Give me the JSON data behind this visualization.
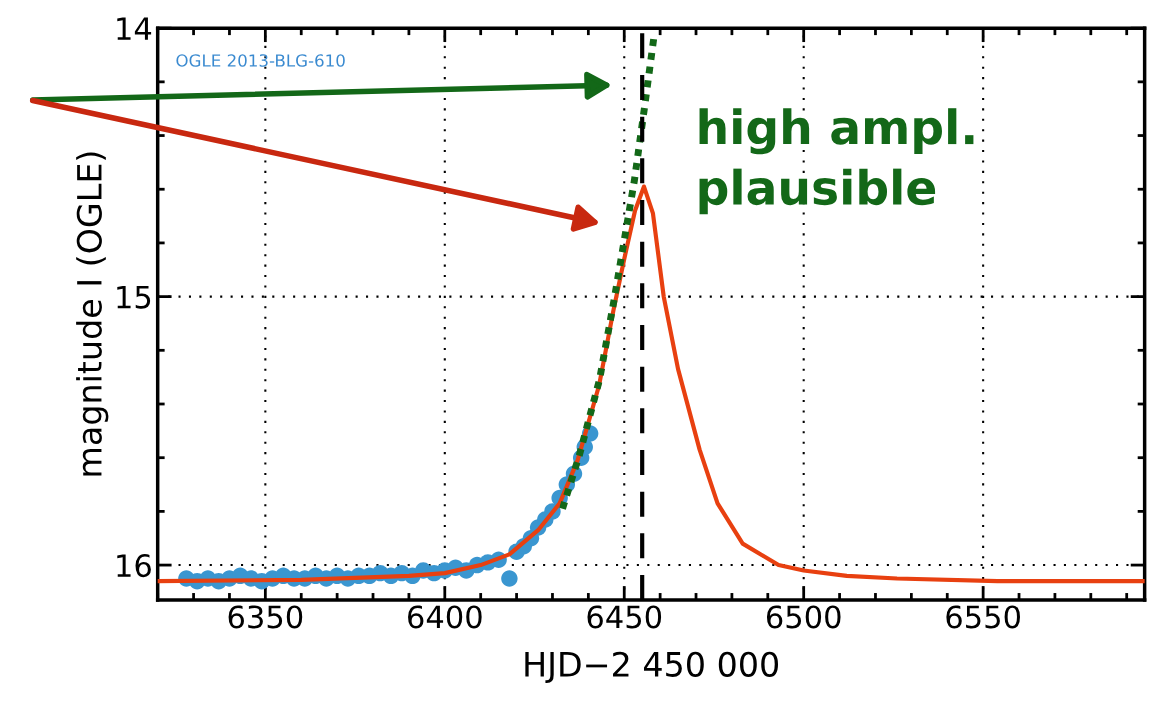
{
  "chart_data": {
    "type": "line",
    "xlabel": "HJD−2 450 000",
    "ylabel": "magnitude I (OGLE)",
    "xlim": [
      6320,
      6595
    ],
    "ylim": [
      16.13,
      14
    ],
    "xticks": [
      6350,
      6400,
      6450,
      6500,
      6550
    ],
    "yticks": [
      14,
      15,
      16
    ],
    "grid": true,
    "annotations": [
      "OGLE 2013-BLG-610",
      "high ampl.\nplausible"
    ],
    "ref_lines": [
      {
        "axis": "x",
        "value": 6455,
        "color": "#000000",
        "line_style": "dashed"
      }
    ],
    "series": [
      {
        "type": "scatter",
        "marker": "circle",
        "color": "#3a96d0",
        "x": [
          6328,
          6331,
          6334,
          6337,
          6340,
          6343,
          6346,
          6349,
          6352,
          6355,
          6358,
          6361,
          6364,
          6367,
          6370,
          6373,
          6376,
          6379,
          6382,
          6385,
          6388,
          6391,
          6394,
          6397,
          6400,
          6403,
          6406,
          6409,
          6412,
          6415,
          6418,
          6420,
          6422,
          6424,
          6426,
          6428,
          6430,
          6432,
          6434,
          6436,
          6438,
          6439,
          6440.5
        ],
        "values": [
          16.05,
          16.06,
          16.05,
          16.06,
          16.05,
          16.04,
          16.05,
          16.06,
          16.05,
          16.04,
          16.05,
          16.05,
          16.04,
          16.05,
          16.04,
          16.05,
          16.04,
          16.04,
          16.03,
          16.04,
          16.03,
          16.04,
          16.02,
          16.03,
          16.02,
          16.01,
          16.02,
          16.0,
          15.99,
          15.98,
          16.05,
          15.95,
          15.93,
          15.9,
          15.86,
          15.83,
          15.8,
          15.75,
          15.7,
          15.66,
          15.6,
          15.56,
          15.51
        ]
      },
      {
        "line_style": "solid",
        "color": "#e84010",
        "x": [
          6320,
          6360,
          6390,
          6400,
          6410,
          6418,
          6426,
          6432,
          6437,
          6443,
          6447,
          6450,
          6453,
          6455.5,
          6458,
          6461,
          6465,
          6471,
          6476,
          6483,
          6493,
          6500,
          6512,
          6526,
          6554,
          6595
        ],
        "values": [
          16.06,
          16.055,
          16.04,
          16.03,
          16.0,
          15.96,
          15.87,
          15.77,
          15.61,
          15.33,
          15.05,
          14.86,
          14.68,
          14.59,
          14.69,
          15.0,
          15.27,
          15.57,
          15.77,
          15.92,
          16.0,
          16.02,
          16.04,
          16.05,
          16.06,
          16.06
        ]
      },
      {
        "line_style": "dotted",
        "color": "#136818",
        "x": [
          6432.8,
          6437.5,
          6443.1,
          6447.2,
          6450,
          6452.8,
          6455.6,
          6458.3
        ],
        "values": [
          15.79,
          15.59,
          15.31,
          15.01,
          14.79,
          14.57,
          14.3,
          14.03
        ]
      }
    ]
  }
}
